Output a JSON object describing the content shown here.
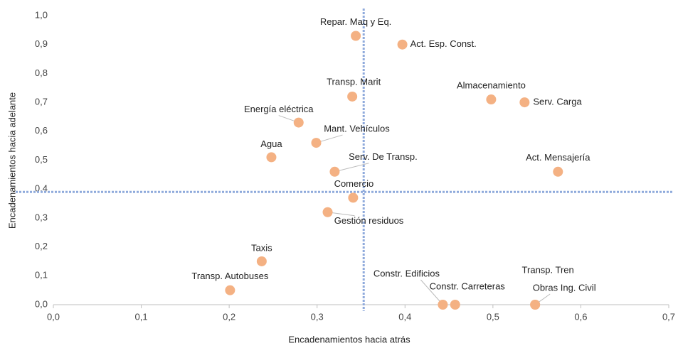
{
  "chart_data": {
    "type": "scatter",
    "x_label": "Encadenamientos hacia atrás",
    "y_label": "Encadenamientos hacia adelante",
    "color": "#f4b183",
    "ref_color": "#8faadc",
    "ref_x": 0.353,
    "ref_y": 0.39,
    "labels": [
      "Repar. Maq y Eq.",
      "Act. Esp. Const.",
      "Transp. Marit",
      "Almacenamiento",
      "Serv. Carga",
      "Energía eléctrica",
      "Mant. Vehículos",
      "Agua",
      "Serv. De Transp.",
      "Act. Mensajería",
      "Comercio",
      "Gestión residuos",
      "Taxis",
      "Transp. Autobuses",
      "Constr. Edificios",
      "Constr. Carreteras",
      "Transp. Tren",
      "Obras Ing. Civil"
    ],
    "x": [
      0.344,
      0.397,
      0.34,
      0.498,
      0.536,
      0.279,
      0.299,
      0.248,
      0.32,
      0.574,
      0.341,
      0.312,
      0.237,
      0.201,
      0.443,
      0.457,
      0.548,
      0.548
    ],
    "y": [
      0.93,
      0.9,
      0.72,
      0.71,
      0.7,
      0.63,
      0.56,
      0.51,
      0.46,
      0.46,
      0.37,
      0.32,
      0.15,
      0.05,
      0.0,
      0.0,
      0.0,
      0.0
    ],
    "xlim": [
      0,
      0.7
    ],
    "ylim": [
      0,
      1.0
    ],
    "xticks": [
      {
        "value": 0,
        "label": "0,0"
      },
      {
        "value": 0.1,
        "label": "0,1"
      },
      {
        "value": 0.2,
        "label": "0,2"
      },
      {
        "value": 0.3,
        "label": "0,3"
      },
      {
        "value": 0.4,
        "label": "0,4"
      },
      {
        "value": 0.5,
        "label": "0,5"
      },
      {
        "value": 0.6,
        "label": "0,6"
      },
      {
        "value": 0.7,
        "label": "0,7"
      }
    ],
    "yticks": [
      {
        "value": 0,
        "label": "0,0"
      },
      {
        "value": 0.1,
        "label": "0,1"
      },
      {
        "value": 0.2,
        "label": "0,2"
      },
      {
        "value": 0.3,
        "label": "0,3"
      },
      {
        "value": 0.4,
        "label": "0,4"
      },
      {
        "value": 0.5,
        "label": "0,5"
      },
      {
        "value": 0.6,
        "label": "0,6"
      },
      {
        "value": 0.7,
        "label": "0,7"
      },
      {
        "value": 0.8,
        "label": "0,8"
      },
      {
        "value": 0.9,
        "label": "0,9"
      },
      {
        "value": 1.0,
        "label": "1,0"
      }
    ]
  }
}
